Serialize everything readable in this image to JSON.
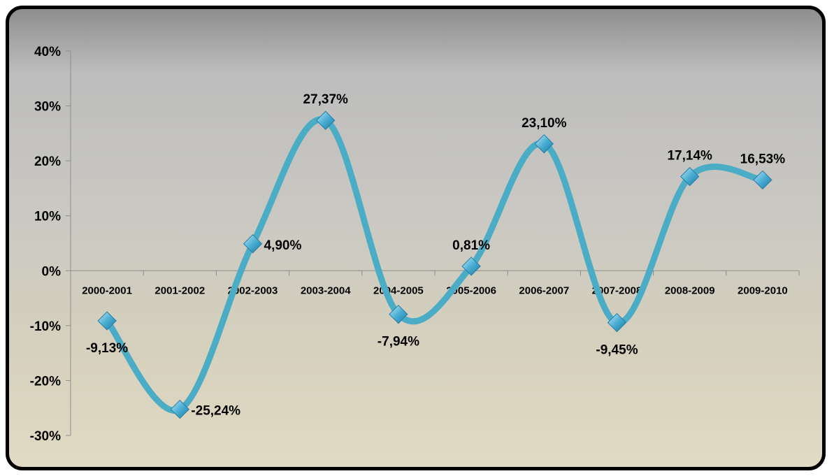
{
  "chart_data": {
    "type": "line",
    "title": "",
    "xlabel": "",
    "ylabel": "",
    "categories": [
      "2000-2001",
      "2001-2002",
      "2002-2003",
      "2003-2004",
      "2004-2005",
      "2005-2006",
      "2006-2007",
      "2007-2008",
      "2008-2009",
      "2009-2010"
    ],
    "values": [
      -9.13,
      -25.24,
      4.9,
      27.37,
      -7.94,
      0.81,
      23.1,
      -9.45,
      17.14,
      16.53
    ],
    "data_labels": [
      "-9,13%",
      "-25,24%",
      "4,90%",
      "27,37%",
      "-7,94%",
      "0,81%",
      "23,10%",
      "-9,45%",
      "17,14%",
      "16,53%"
    ],
    "y_ticks": [
      40,
      30,
      20,
      10,
      0,
      -10,
      -20,
      -30
    ],
    "y_tick_labels": [
      "40%",
      "30%",
      "20%",
      "10%",
      "0%",
      "-10%",
      "-20%",
      "-30%"
    ],
    "ylim": [
      -30,
      40
    ],
    "line_style": "smoothed",
    "marker": "diamond",
    "grid": false,
    "legend": "none",
    "colors": {
      "line": "#4bacc6",
      "marker": "#5ab4d6"
    }
  }
}
